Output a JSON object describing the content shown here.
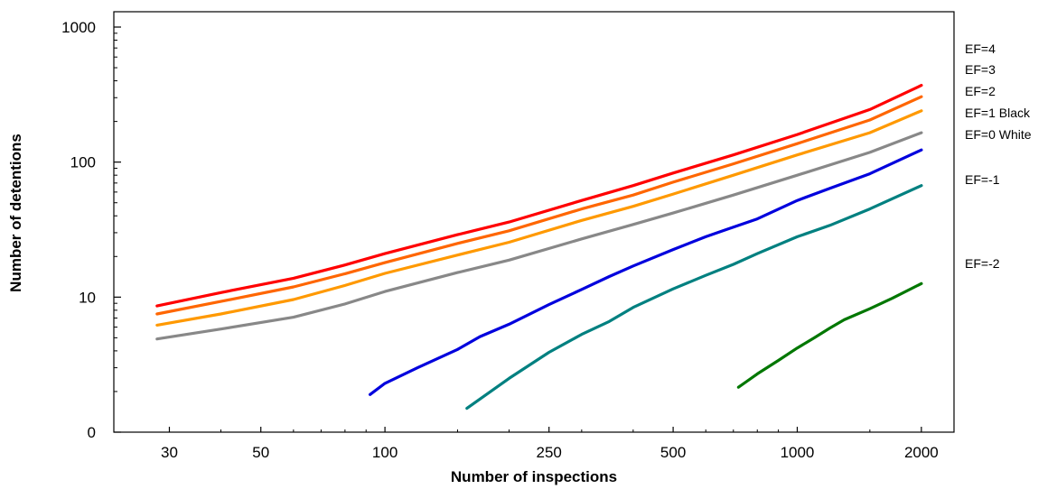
{
  "chart_data": {
    "type": "line",
    "title": "",
    "xlabel": "Number of inspections",
    "ylabel": "Number of detentions",
    "x_scale": "log",
    "y_scale": "log",
    "xlim": [
      22,
      2400
    ],
    "x_ticks": [
      30,
      50,
      100,
      250,
      500,
      1000,
      2000
    ],
    "y_ticks": [
      {
        "value": 1,
        "label": "0"
      },
      {
        "value": 10,
        "label": "10"
      },
      {
        "value": 100,
        "label": "100"
      },
      {
        "value": 1000,
        "label": "1000"
      }
    ],
    "ylim_labels": [
      "0",
      "1000"
    ],
    "grid": false,
    "legend_position": "right",
    "series": [
      {
        "name": "EF=4",
        "color": "#ff0000",
        "x": [
          28,
          40,
          60,
          80,
          100,
          150,
          200,
          300,
          400,
          500,
          700,
          1000,
          1500,
          2000
        ],
        "y": [
          8.6,
          10.8,
          13.8,
          17.3,
          21,
          29,
          36,
          52,
          67,
          83,
          113,
          160,
          245,
          370
        ]
      },
      {
        "name": "EF=3",
        "color": "#ff6600",
        "x": [
          28,
          40,
          60,
          80,
          100,
          150,
          200,
          300,
          400,
          500,
          700,
          1000,
          1500,
          2000
        ],
        "y": [
          7.5,
          9.3,
          11.9,
          14.9,
          18,
          25,
          31,
          45,
          57,
          71,
          97,
          137,
          205,
          305
        ]
      },
      {
        "name": "EF=2",
        "color": "#ff9900",
        "x": [
          28,
          40,
          60,
          80,
          100,
          150,
          200,
          300,
          400,
          500,
          700,
          1000,
          1500,
          2000
        ],
        "y": [
          6.2,
          7.5,
          9.6,
          12.2,
          15,
          20.5,
          25.5,
          37,
          47,
          58,
          80,
          113,
          165,
          240
        ]
      },
      {
        "name": "EF=1 Black",
        "color": "#888888",
        "x": [
          28,
          40,
          60,
          80,
          100,
          150,
          200,
          300,
          400,
          500,
          700,
          1000,
          1500,
          2000
        ],
        "y": [
          4.9,
          5.8,
          7.1,
          8.9,
          11,
          15.2,
          18.8,
          27,
          34.5,
          42,
          57,
          80,
          118,
          165
        ]
      },
      {
        "name": "EF=0 White",
        "color": "#0000dd",
        "x": [
          92,
          100,
          120,
          150,
          170,
          200,
          250,
          300,
          350,
          400,
          500,
          600,
          700,
          800,
          1000,
          1200,
          1500,
          2000
        ],
        "y": [
          1.9,
          2.3,
          3,
          4.1,
          5.1,
          6.3,
          8.8,
          11.4,
          14.2,
          17,
          22.5,
          28,
          33,
          38,
          52,
          64,
          82,
          123
        ]
      },
      {
        "name": "EF=-1",
        "color": "#008080",
        "x": [
          158,
          200,
          250,
          300,
          350,
          400,
          500,
          600,
          700,
          800,
          1000,
          1200,
          1500,
          2000
        ],
        "y": [
          1.5,
          2.5,
          3.9,
          5.3,
          6.6,
          8.4,
          11.5,
          14.5,
          17.5,
          21,
          28,
          34,
          45,
          67
        ]
      },
      {
        "name": "EF=-2",
        "color": "#007700",
        "x": [
          720,
          750,
          800,
          900,
          1000,
          1100,
          1200,
          1300,
          1500,
          1700,
          2000
        ],
        "y": [
          2.15,
          2.35,
          2.7,
          3.4,
          4.2,
          5.0,
          5.9,
          6.8,
          8.2,
          9.8,
          12.6
        ]
      }
    ]
  }
}
